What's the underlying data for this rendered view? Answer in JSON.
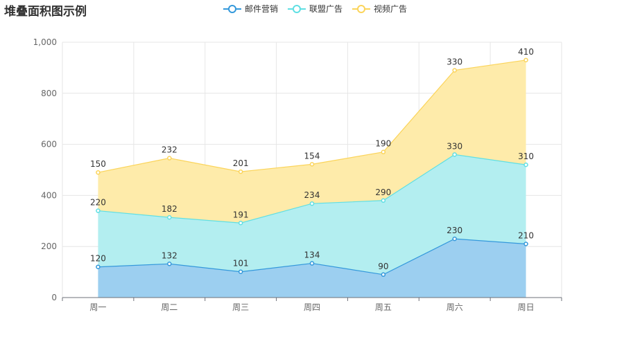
{
  "chart_data": {
    "type": "area",
    "stacked": true,
    "title": "堆叠面积图示例",
    "categories": [
      "周一",
      "周二",
      "周三",
      "周四",
      "周五",
      "周六",
      "周日"
    ],
    "series": [
      {
        "name": "邮件营销",
        "values": [
          120,
          132,
          101,
          134,
          90,
          230,
          210
        ],
        "color": "#3398db",
        "fill": "#9ccff0"
      },
      {
        "name": "联盟广告",
        "values": [
          220,
          182,
          191,
          234,
          290,
          330,
          310
        ],
        "color": "#5fdfe3",
        "fill": "#b3eef0"
      },
      {
        "name": "视频广告",
        "values": [
          150,
          232,
          201,
          154,
          190,
          330,
          410
        ],
        "color": "#fbd45a",
        "fill": "#feebaa"
      }
    ],
    "ylim": [
      0,
      1000
    ],
    "yticks": [
      "0",
      "200",
      "400",
      "600",
      "800",
      "1,000"
    ],
    "grid": true,
    "legend_position": "top"
  }
}
